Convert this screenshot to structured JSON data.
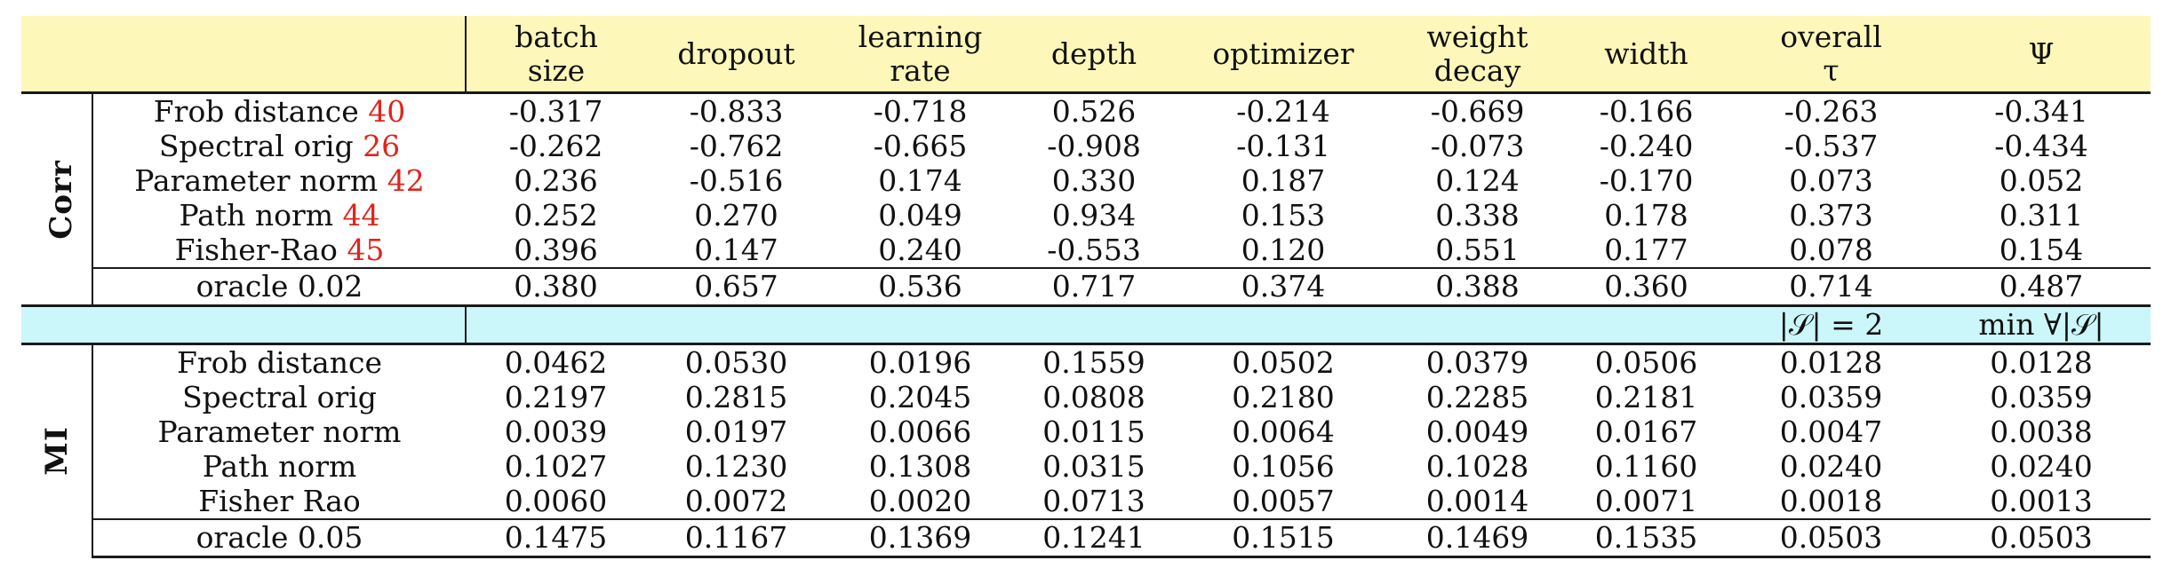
{
  "columns": [
    [
      "batch",
      "size"
    ],
    [
      "dropout"
    ],
    [
      "learning",
      "rate"
    ],
    [
      "depth"
    ],
    [
      "optimizer"
    ],
    [
      "weight",
      "decay"
    ],
    [
      "width"
    ],
    [
      "overall",
      "τ"
    ],
    [
      "Ψ"
    ]
  ],
  "sections": [
    {
      "label": "Corr",
      "rows": [
        {
          "name": "Frob distance",
          "ref": "40",
          "values": [
            "-0.317",
            "-0.833",
            "-0.718",
            "0.526",
            "-0.214",
            "-0.669",
            "-0.166",
            "-0.263",
            "-0.341"
          ],
          "bold": []
        },
        {
          "name": "Spectral orig",
          "ref": "26",
          "values": [
            "-0.262",
            "-0.762",
            "-0.665",
            "-0.908",
            "-0.131",
            "-0.073",
            "-0.240",
            "-0.537",
            "-0.434"
          ],
          "bold": []
        },
        {
          "name": "Parameter norm",
          "ref": "42",
          "values": [
            "0.236",
            "-0.516",
            "0.174",
            "0.330",
            "0.187",
            "0.124",
            "-0.170",
            "0.073",
            "0.052"
          ],
          "bold": [
            4
          ]
        },
        {
          "name": "Path norm",
          "ref": "44",
          "values": [
            "0.252",
            "0.270",
            "0.049",
            "0.934",
            "0.153",
            "0.338",
            "0.178",
            "0.373",
            "0.311"
          ],
          "bold": [
            1,
            3,
            6,
            7,
            8
          ]
        },
        {
          "name": "Fisher-Rao",
          "ref": "45",
          "values": [
            "0.396",
            "0.147",
            "0.240",
            "-0.553",
            "0.120",
            "0.551",
            "0.177",
            "0.078",
            "0.154"
          ],
          "bold": [
            0,
            2,
            5
          ]
        }
      ],
      "oracle": {
        "name": "oracle 0.02",
        "values": [
          "0.380",
          "0.657",
          "0.536",
          "0.717",
          "0.374",
          "0.388",
          "0.360",
          "0.714",
          "0.487"
        ]
      }
    },
    {
      "label": "MI",
      "rows": [
        {
          "name": "Frob distance",
          "ref": "",
          "values": [
            "0.0462",
            "0.0530",
            "0.0196",
            "0.1559",
            "0.0502",
            "0.0379",
            "0.0506",
            "0.0128",
            "0.0128"
          ],
          "bold": [
            3
          ]
        },
        {
          "name": "Spectral orig",
          "ref": "",
          "values": [
            "0.2197",
            "0.2815",
            "0.2045",
            "0.0808",
            "0.2180",
            "0.2285",
            "0.2181",
            "0.0359",
            "0.0359"
          ],
          "bold": [
            0,
            1,
            2,
            4,
            5,
            6,
            7,
            8
          ]
        },
        {
          "name": "Parameter norm",
          "ref": "",
          "values": [
            "0.0039",
            "0.0197",
            "0.0066",
            "0.0115",
            "0.0064",
            "0.0049",
            "0.0167",
            "0.0047",
            "0.0038"
          ],
          "bold": []
        },
        {
          "name": "Path norm",
          "ref": "",
          "values": [
            "0.1027",
            "0.1230",
            "0.1308",
            "0.0315",
            "0.1056",
            "0.1028",
            "0.1160",
            "0.0240",
            "0.0240"
          ],
          "bold": []
        },
        {
          "name": "Fisher Rao",
          "ref": "",
          "values": [
            "0.0060",
            "0.0072",
            "0.0020",
            "0.0713",
            "0.0057",
            "0.0014",
            "0.0071",
            "0.0018",
            "0.0013"
          ],
          "bold": []
        }
      ],
      "oracle": {
        "name": "oracle 0.05",
        "values": [
          "0.1475",
          "0.1167",
          "0.1369",
          "0.1241",
          "0.1515",
          "0.1469",
          "0.1535",
          "0.0503",
          "0.0503"
        ]
      }
    }
  ],
  "separator": {
    "overall": "|𝒮| = 2",
    "psi": "min ∀|𝒮|"
  }
}
